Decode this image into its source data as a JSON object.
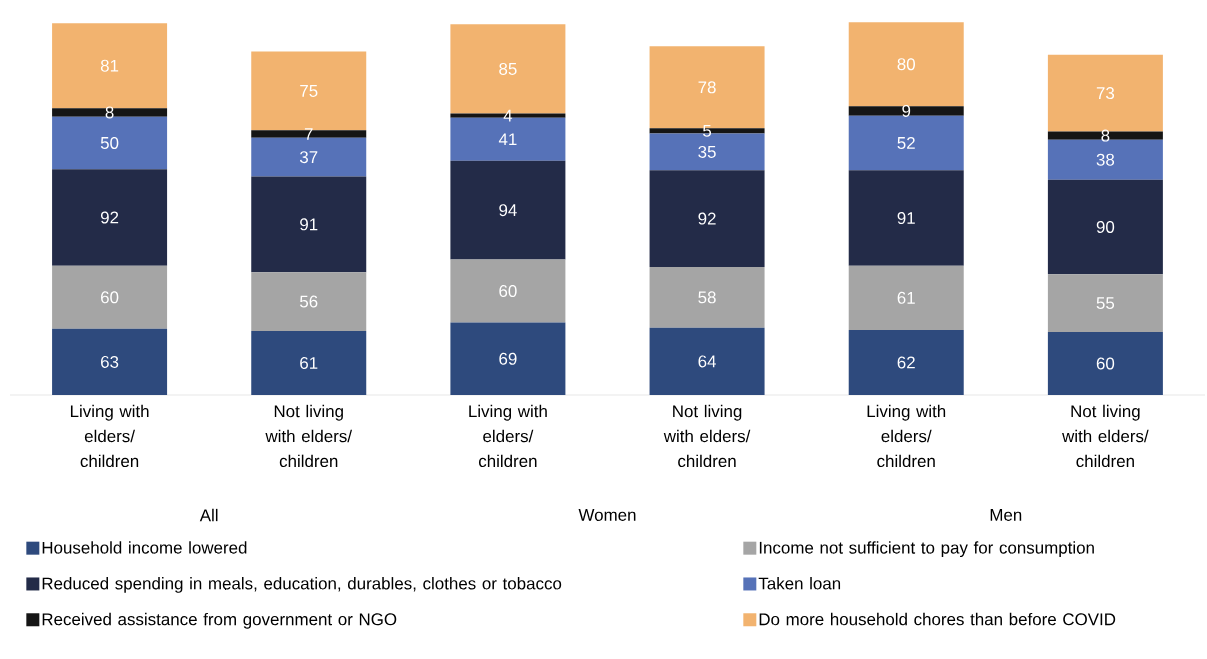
{
  "chart_data": {
    "type": "bar",
    "stacked": true,
    "data_labels": true,
    "legend": "bottom",
    "categories": [
      "Living with elders/ children",
      "Not living with elders/ children",
      "Living with elders/ children",
      "Not living with elders/ children",
      "Living with elders/ children",
      "Not living with elders/ children"
    ],
    "annotations": [
      "All",
      "Women",
      "Men"
    ],
    "series": [
      {
        "name": "Household income lowered",
        "color": "#2e4a7d",
        "values": [
          63,
          61,
          69,
          64,
          62,
          60
        ]
      },
      {
        "name": "Income not sufficient to pay for consumption",
        "color": "#a5a5a5",
        "values": [
          60,
          56,
          60,
          58,
          61,
          55
        ]
      },
      {
        "name": "Reduced spending in meals, education, durables, clothes or tobacco",
        "color": "#232b48",
        "values": [
          92,
          91,
          94,
          92,
          91,
          90
        ]
      },
      {
        "name": "Taken loan",
        "color": "#5672b8",
        "values": [
          50,
          37,
          41,
          35,
          52,
          38
        ]
      },
      {
        "name": "Received assistance from government or NGO",
        "color": "#151515",
        "values": [
          8,
          7,
          4,
          5,
          9,
          8
        ]
      },
      {
        "name": "Do more household chores than before COVID",
        "color": "#f2b36f",
        "values": [
          81,
          75,
          85,
          78,
          80,
          73
        ]
      }
    ]
  }
}
